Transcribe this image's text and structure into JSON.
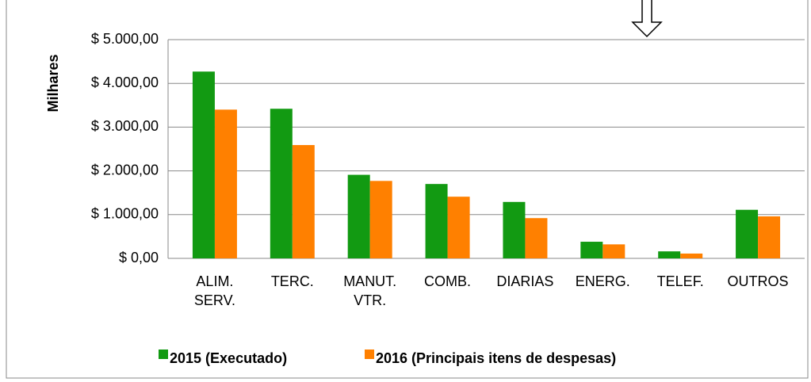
{
  "chart_data": {
    "type": "bar",
    "y_label": "Milhares",
    "categories": [
      "ALIM. SERV.",
      "TERC.",
      "MANUT. VTR.",
      "COMB.",
      "DIARIAS",
      "ENERG.",
      "TELEF.",
      "OUTROS"
    ],
    "series": [
      {
        "name": "2015 (Executado)",
        "color": "#129a12",
        "values": [
          4270,
          3420,
          1910,
          1700,
          1290,
          380,
          160,
          1110
        ]
      },
      {
        "name": "2016 (Principais itens de despesas)",
        "color": "#ff8000",
        "values": [
          3400,
          2590,
          1770,
          1410,
          920,
          320,
          110,
          960
        ]
      }
    ],
    "ylim": [
      0,
      5000
    ],
    "yticks": [
      {
        "value": 0,
        "label": "$ 0,00"
      },
      {
        "value": 1000,
        "label": "$ 1.000,00"
      },
      {
        "value": 2000,
        "label": "$ 2.000,00"
      },
      {
        "value": 3000,
        "label": "$ 3.000,00"
      },
      {
        "value": 4000,
        "label": "$ 4.000,00"
      },
      {
        "value": 5000,
        "label": "$ 5.000,00"
      }
    ],
    "grid": true,
    "legend": "bottom"
  }
}
